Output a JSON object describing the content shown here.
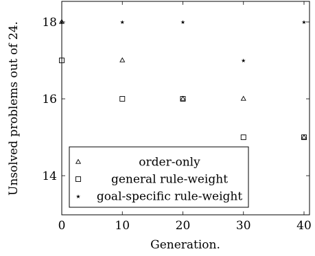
{
  "chart_data": {
    "type": "scatter",
    "title": "",
    "xlabel": "Generation.",
    "ylabel": "Unsolved problems out of 24.",
    "xlim": [
      0,
      40
    ],
    "ylim": [
      13,
      18.5
    ],
    "xticks": [
      0,
      10,
      20,
      30,
      40
    ],
    "yticks": [
      14,
      16,
      18
    ],
    "grid": false,
    "legend_position": "bottom-left",
    "series": [
      {
        "name": "order-only",
        "marker": "triangle",
        "x": [
          0,
          10,
          20,
          30,
          40
        ],
        "y": [
          18,
          17,
          16,
          16,
          15
        ]
      },
      {
        "name": "general rule-weight",
        "marker": "square",
        "x": [
          0,
          10,
          20,
          30,
          40
        ],
        "y": [
          17,
          16,
          16,
          15,
          15
        ]
      },
      {
        "name": "goal-specific rule-weight",
        "marker": "star",
        "x": [
          0,
          10,
          20,
          30,
          40
        ],
        "y": [
          18,
          18,
          18,
          17,
          18
        ]
      }
    ]
  },
  "colors": {
    "marker": "#000000",
    "axis": "#000000",
    "background": "#ffffff"
  }
}
